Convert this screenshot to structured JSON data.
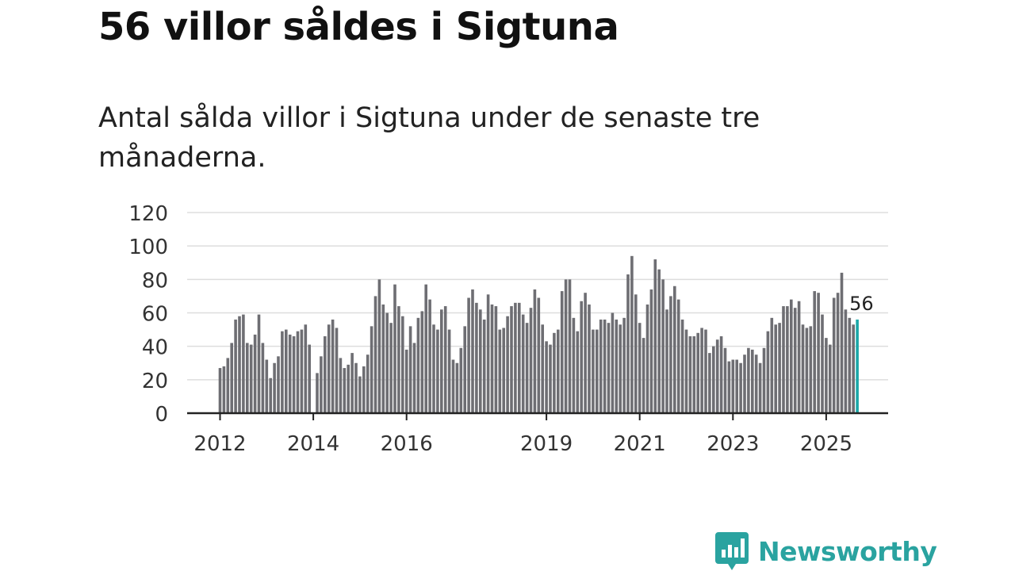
{
  "title": "56 villor såldes i Sigtuna",
  "subtitle": "Antal sålda villor i Sigtuna under de senaste tre månaderna.",
  "brand": {
    "name": "Newsworthy",
    "color": "#2aa3a0",
    "icon": "newsworthy-chart-bubble-icon"
  },
  "colors": {
    "bar": "#6e6e73",
    "highlight": "#1aa7a8",
    "grid": "#dddddd",
    "axis": "#222222"
  },
  "chart_data": {
    "type": "bar",
    "title": "56 villor såldes i Sigtuna",
    "xlabel": "",
    "ylabel": "",
    "ylim": [
      0,
      120
    ],
    "yticks": [
      0,
      20,
      40,
      60,
      80,
      100,
      120
    ],
    "x_start": "2012-01",
    "xticks": [
      {
        "label": "2012",
        "index": 0
      },
      {
        "label": "2014",
        "index": 24
      },
      {
        "label": "2016",
        "index": 48
      },
      {
        "label": "2019",
        "index": 84
      },
      {
        "label": "2021",
        "index": 108
      },
      {
        "label": "2023",
        "index": 132
      },
      {
        "label": "2025",
        "index": 156
      }
    ],
    "values": [
      27,
      28,
      33,
      42,
      56,
      58,
      59,
      42,
      41,
      47,
      59,
      42,
      32,
      21,
      30,
      34,
      49,
      50,
      47,
      46,
      49,
      50,
      53,
      41,
      0,
      24,
      34,
      46,
      53,
      56,
      51,
      33,
      27,
      29,
      36,
      30,
      22,
      28,
      35,
      52,
      70,
      80,
      65,
      60,
      54,
      77,
      64,
      58,
      38,
      52,
      42,
      57,
      61,
      77,
      68,
      53,
      50,
      62,
      64,
      50,
      32,
      30,
      39,
      52,
      69,
      74,
      66,
      62,
      56,
      71,
      65,
      64,
      50,
      51,
      58,
      64,
      66,
      66,
      59,
      54,
      63,
      74,
      69,
      53,
      43,
      41,
      48,
      50,
      73,
      80,
      80,
      57,
      49,
      67,
      72,
      65,
      50,
      50,
      56,
      56,
      54,
      60,
      56,
      53,
      57,
      83,
      94,
      71,
      54,
      45,
      65,
      74,
      92,
      86,
      80,
      62,
      70,
      76,
      68,
      56,
      50,
      46,
      46,
      48,
      51,
      50,
      36,
      40,
      44,
      46,
      39,
      31,
      32,
      32,
      30,
      35,
      39,
      38,
      35,
      30,
      39,
      49,
      57,
      53,
      54,
      64,
      64,
      68,
      63,
      67,
      53,
      51,
      52,
      73,
      72,
      59,
      45,
      41,
      69,
      72,
      84,
      62,
      57,
      53,
      56
    ],
    "highlight_label": "56"
  }
}
